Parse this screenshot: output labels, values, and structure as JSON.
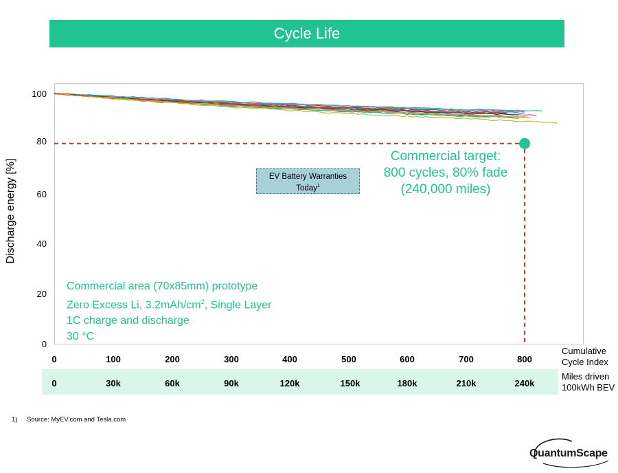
{
  "header": {
    "title": "Cycle Life"
  },
  "chart_data": {
    "type": "line",
    "ylabel": "Discharge energy [%]",
    "ylim": [
      0,
      100
    ],
    "yticks": [
      "0",
      "20",
      "40",
      "60",
      "80",
      "100"
    ],
    "xlim": [
      0,
      870
    ],
    "xticks": [
      "0",
      "100",
      "200",
      "300",
      "400",
      "500",
      "600",
      "700",
      "800"
    ],
    "xlabel": "Cumulative Cycle Index",
    "secondary_axis": {
      "label": "Miles driven 100kWh BEV",
      "ticks": [
        "0",
        "30k",
        "60k",
        "90k",
        "120k",
        "150k",
        "180k",
        "210k",
        "240k"
      ]
    },
    "series": [
      {
        "color": "#d62728",
        "x": [
          0,
          100,
          200,
          300,
          400,
          500,
          600,
          700,
          800
        ],
        "y": [
          100,
          98.8,
          97.5,
          96.5,
          95.6,
          94.9,
          94.2,
          93.5,
          92.9
        ]
      },
      {
        "color": "#1f77b4",
        "x": [
          0,
          100,
          200,
          300,
          400,
          500,
          600,
          700,
          800
        ],
        "y": [
          100,
          98.5,
          97.2,
          96.1,
          95.2,
          94.4,
          93.7,
          93.0,
          92.3
        ]
      },
      {
        "color": "#2ca02c",
        "x": [
          0,
          100,
          200,
          300,
          400,
          500,
          600,
          700,
          780
        ],
        "y": [
          100,
          98.2,
          96.8,
          95.6,
          94.7,
          93.9,
          93.1,
          92.3,
          91.7
        ]
      },
      {
        "color": "#9467bd",
        "x": [
          0,
          100,
          200,
          300,
          400,
          500,
          600,
          700,
          820
        ],
        "y": [
          100,
          98.6,
          97.3,
          96.2,
          95.1,
          94.1,
          93.2,
          92.3,
          91.3
        ]
      },
      {
        "color": "#8c564b",
        "x": [
          0,
          100,
          200,
          300,
          400,
          500,
          600,
          700,
          800
        ],
        "y": [
          100,
          98.0,
          96.4,
          95.0,
          93.9,
          92.9,
          92.0,
          91.2,
          90.4
        ]
      },
      {
        "color": "#ff7f0e",
        "x": [
          0,
          100,
          200,
          300,
          400,
          500,
          600,
          700,
          810
        ],
        "y": [
          100,
          98.3,
          96.9,
          95.6,
          94.4,
          93.4,
          92.4,
          91.4,
          90.4
        ]
      },
      {
        "color": "#e377c2",
        "x": [
          0,
          100,
          200,
          300,
          400,
          500,
          600,
          700,
          800
        ],
        "y": [
          100,
          98.7,
          97.6,
          96.7,
          95.8,
          95.0,
          94.2,
          93.4,
          92.6
        ]
      },
      {
        "color": "#17becf",
        "x": [
          0,
          100,
          200,
          300,
          400,
          500,
          600,
          700,
          790
        ],
        "y": [
          100,
          98.1,
          96.5,
          95.1,
          93.9,
          92.8,
          91.8,
          90.9,
          90.2
        ]
      },
      {
        "color": "#bcbd22",
        "x": [
          0,
          100,
          200,
          300,
          400,
          500,
          600,
          700,
          800,
          855
        ],
        "y": [
          100,
          98.0,
          96.2,
          94.6,
          93.2,
          92.0,
          90.9,
          89.9,
          88.9,
          88.2
        ]
      },
      {
        "color": "#7f7f7f",
        "x": [
          0,
          100,
          200,
          300,
          400,
          500,
          600,
          700,
          800
        ],
        "y": [
          100,
          98.2,
          96.7,
          95.4,
          94.3,
          93.3,
          92.4,
          91.5,
          90.7
        ]
      },
      {
        "color": "#1abc9c",
        "x": [
          0,
          100,
          200,
          300,
          400,
          500,
          600,
          700,
          830
        ],
        "y": [
          100,
          98.9,
          97.8,
          96.8,
          95.9,
          95.0,
          94.3,
          93.6,
          92.9
        ]
      },
      {
        "color": "#c0392b",
        "x": [
          0,
          100,
          200,
          300,
          400,
          500,
          600,
          700,
          770
        ],
        "y": [
          100,
          98.4,
          97.1,
          96.0,
          95.0,
          94.2,
          93.4,
          92.7,
          92.2
        ]
      },
      {
        "color": "#34495e",
        "x": [
          0,
          100,
          200,
          300,
          400,
          500,
          600,
          700,
          790
        ],
        "y": [
          100,
          98.3,
          96.9,
          95.7,
          94.6,
          93.7,
          92.9,
          92.1,
          91.5
        ]
      },
      {
        "color": "#f39c12",
        "x": [
          0,
          100,
          200,
          300,
          400,
          500,
          600,
          700,
          800
        ],
        "y": [
          100,
          98.1,
          96.6,
          95.3,
          94.2,
          93.2,
          92.3,
          91.4,
          90.6
        ]
      }
    ],
    "target_point": {
      "x": 800,
      "y": 80
    },
    "target_color": "#21c392",
    "reference_color": "#c0392b"
  },
  "annotations": {
    "target": [
      "Commercial target:",
      "800 cycles, 80% fade",
      "(240,000 miles)"
    ],
    "warranty": {
      "line1": "EV Battery Warranties",
      "line2": "Today",
      "sup": "1"
    },
    "notes": {
      "line1": "Commercial area (70x85mm) prototype",
      "line2a": "Zero Excess Li, 3.2mAh/cm",
      "line2sup": "2",
      "line2b": ", Single Layer",
      "line3": "1C charge and discharge",
      "line4": "30 °C"
    }
  },
  "xaxis_title": [
    "Cumulative",
    "Cycle Index"
  ],
  "miles_title": [
    "Miles driven",
    "100kWh BEV"
  ],
  "footnote": {
    "number": "1)",
    "text": "Source: MyEV.com and Tesla.com"
  },
  "logo": {
    "text": "QuantumScape"
  },
  "colors": {
    "accent": "#21c392",
    "band": "#d8f6ea",
    "warranty_fill": "#a7d0da"
  }
}
